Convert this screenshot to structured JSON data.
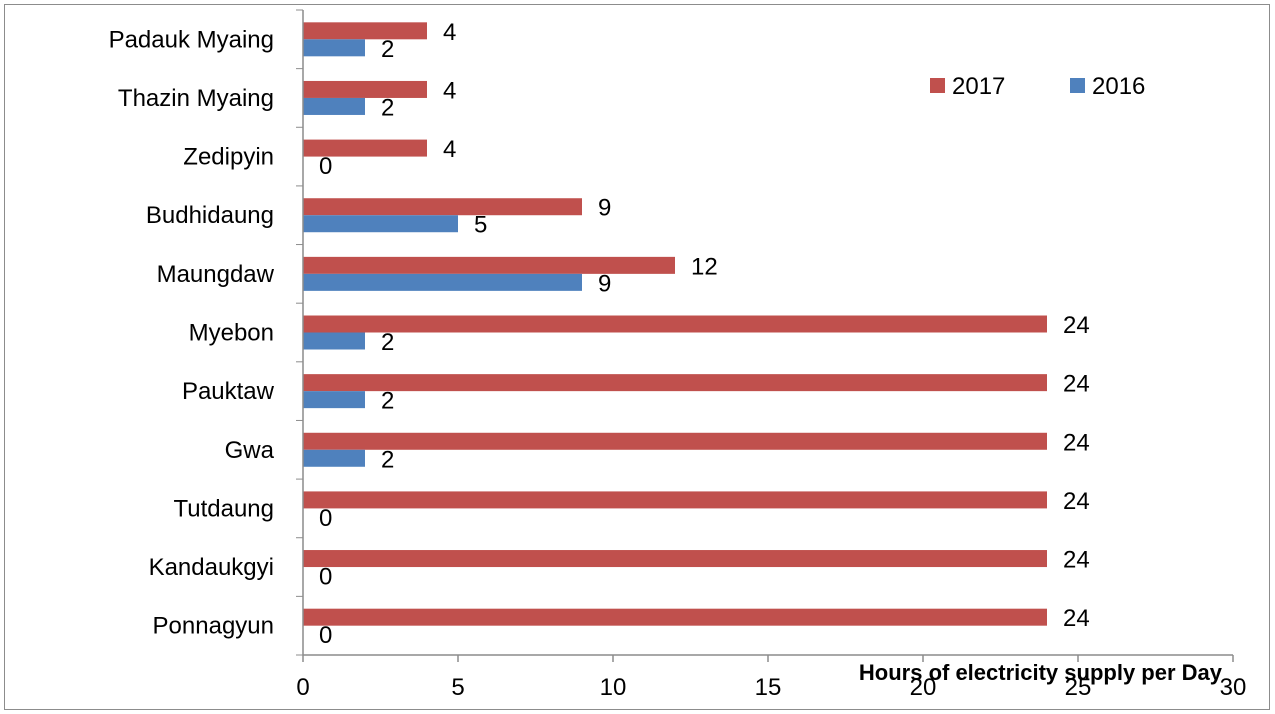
{
  "chart_data": {
    "type": "bar",
    "orientation": "horizontal",
    "title": "",
    "xlabel": "Hours of electricity supply per Day",
    "ylabel": "",
    "xlim": [
      0,
      30
    ],
    "x_ticks": [
      0,
      5,
      10,
      15,
      20,
      25,
      30
    ],
    "grid": false,
    "legend_position": "top-right",
    "categories": [
      "Padauk Myaing",
      "Thazin Myaing",
      "Zedipyin",
      "Budhidaung",
      "Maungdaw",
      "Myebon",
      "Pauktaw",
      "Gwa",
      "Tutdaung",
      "Kandaukgyi",
      "Ponnagyun"
    ],
    "series": [
      {
        "name": "2017",
        "color": "#c0504d",
        "values": [
          4,
          4,
          4,
          9,
          12,
          24,
          24,
          24,
          24,
          24,
          24
        ]
      },
      {
        "name": "2016",
        "color": "#4f81bd",
        "values": [
          2,
          2,
          0,
          5,
          9,
          2,
          2,
          2,
          0,
          0,
          0
        ]
      }
    ]
  }
}
